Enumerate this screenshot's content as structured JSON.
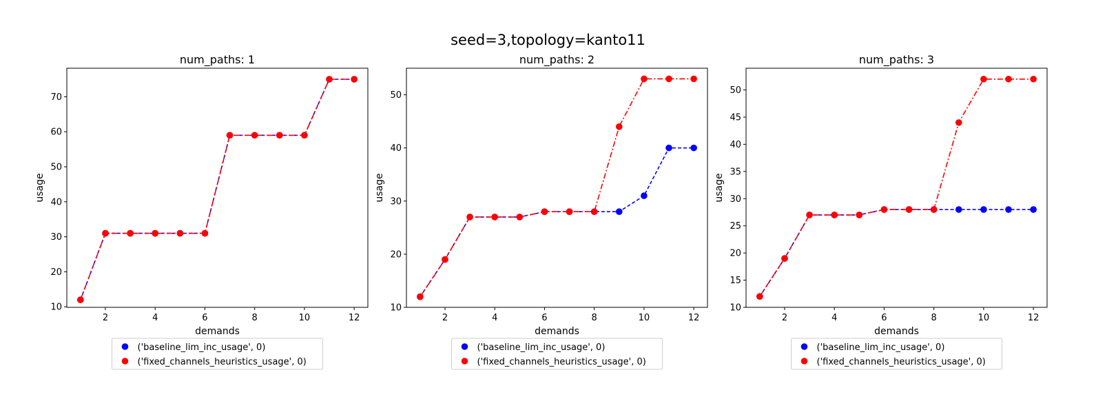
{
  "figure": {
    "suptitle": "seed=3,topology=kanto11"
  },
  "chart_data": [
    {
      "type": "line",
      "title": "num_paths: 1",
      "xlabel": "demands",
      "ylabel": "usage",
      "xlim": [
        0.45,
        12.55
      ],
      "ylim": [
        9.85,
        78.15
      ],
      "xticks": [
        2,
        4,
        6,
        8,
        10,
        12
      ],
      "yticks": [
        10,
        20,
        30,
        40,
        50,
        60,
        70
      ],
      "x": [
        1,
        2,
        3,
        4,
        5,
        6,
        7,
        8,
        9,
        10,
        11,
        12
      ],
      "grid": false,
      "legend_placement": "below",
      "series": [
        {
          "name": "('baseline_lim_inc_usage', 0)",
          "color": "#0000ff",
          "linestyle": "dashed",
          "values": [
            12,
            31,
            31,
            31,
            31,
            31,
            59,
            59,
            59,
            59,
            75,
            75
          ]
        },
        {
          "name": "('fixed_channels_heuristics_usage', 0)",
          "color": "#ff0000",
          "linestyle": "dashdot",
          "values": [
            12,
            31,
            31,
            31,
            31,
            31,
            59,
            59,
            59,
            59,
            75,
            75
          ]
        }
      ]
    },
    {
      "type": "line",
      "title": "num_paths: 2",
      "xlabel": "demands",
      "ylabel": "usage",
      "xlim": [
        0.45,
        12.55
      ],
      "ylim": [
        10,
        55
      ],
      "xticks": [
        2,
        4,
        6,
        8,
        10,
        12
      ],
      "yticks": [
        10,
        20,
        30,
        40,
        50
      ],
      "x": [
        1,
        2,
        3,
        4,
        5,
        6,
        7,
        8,
        9,
        10,
        11,
        12
      ],
      "grid": false,
      "legend_placement": "below",
      "series": [
        {
          "name": "('baseline_lim_inc_usage', 0)",
          "color": "#0000ff",
          "linestyle": "dashed",
          "values": [
            12,
            19,
            27,
            27,
            27,
            28,
            28,
            28,
            28,
            31,
            40,
            40
          ]
        },
        {
          "name": "('fixed_channels_heuristics_usage', 0)",
          "color": "#ff0000",
          "linestyle": "dashdot",
          "values": [
            12,
            19,
            27,
            27,
            27,
            28,
            28,
            28,
            44,
            53,
            53,
            53
          ]
        }
      ]
    },
    {
      "type": "line",
      "title": "num_paths: 3",
      "xlabel": "demands",
      "ylabel": "usage",
      "xlim": [
        0.45,
        12.55
      ],
      "ylim": [
        10,
        54
      ],
      "xticks": [
        2,
        4,
        6,
        8,
        10,
        12
      ],
      "yticks": [
        10,
        15,
        20,
        25,
        30,
        35,
        40,
        45,
        50
      ],
      "x": [
        1,
        2,
        3,
        4,
        5,
        6,
        7,
        8,
        9,
        10,
        11,
        12
      ],
      "grid": false,
      "legend_placement": "below",
      "series": [
        {
          "name": "('baseline_lim_inc_usage', 0)",
          "color": "#0000ff",
          "linestyle": "dashed",
          "values": [
            12,
            19,
            27,
            27,
            27,
            28,
            28,
            28,
            28,
            28,
            28,
            28
          ]
        },
        {
          "name": "('fixed_channels_heuristics_usage', 0)",
          "color": "#ff0000",
          "linestyle": "dashdot",
          "values": [
            12,
            19,
            27,
            27,
            27,
            28,
            28,
            28,
            44,
            52,
            52,
            52
          ]
        }
      ]
    }
  ]
}
